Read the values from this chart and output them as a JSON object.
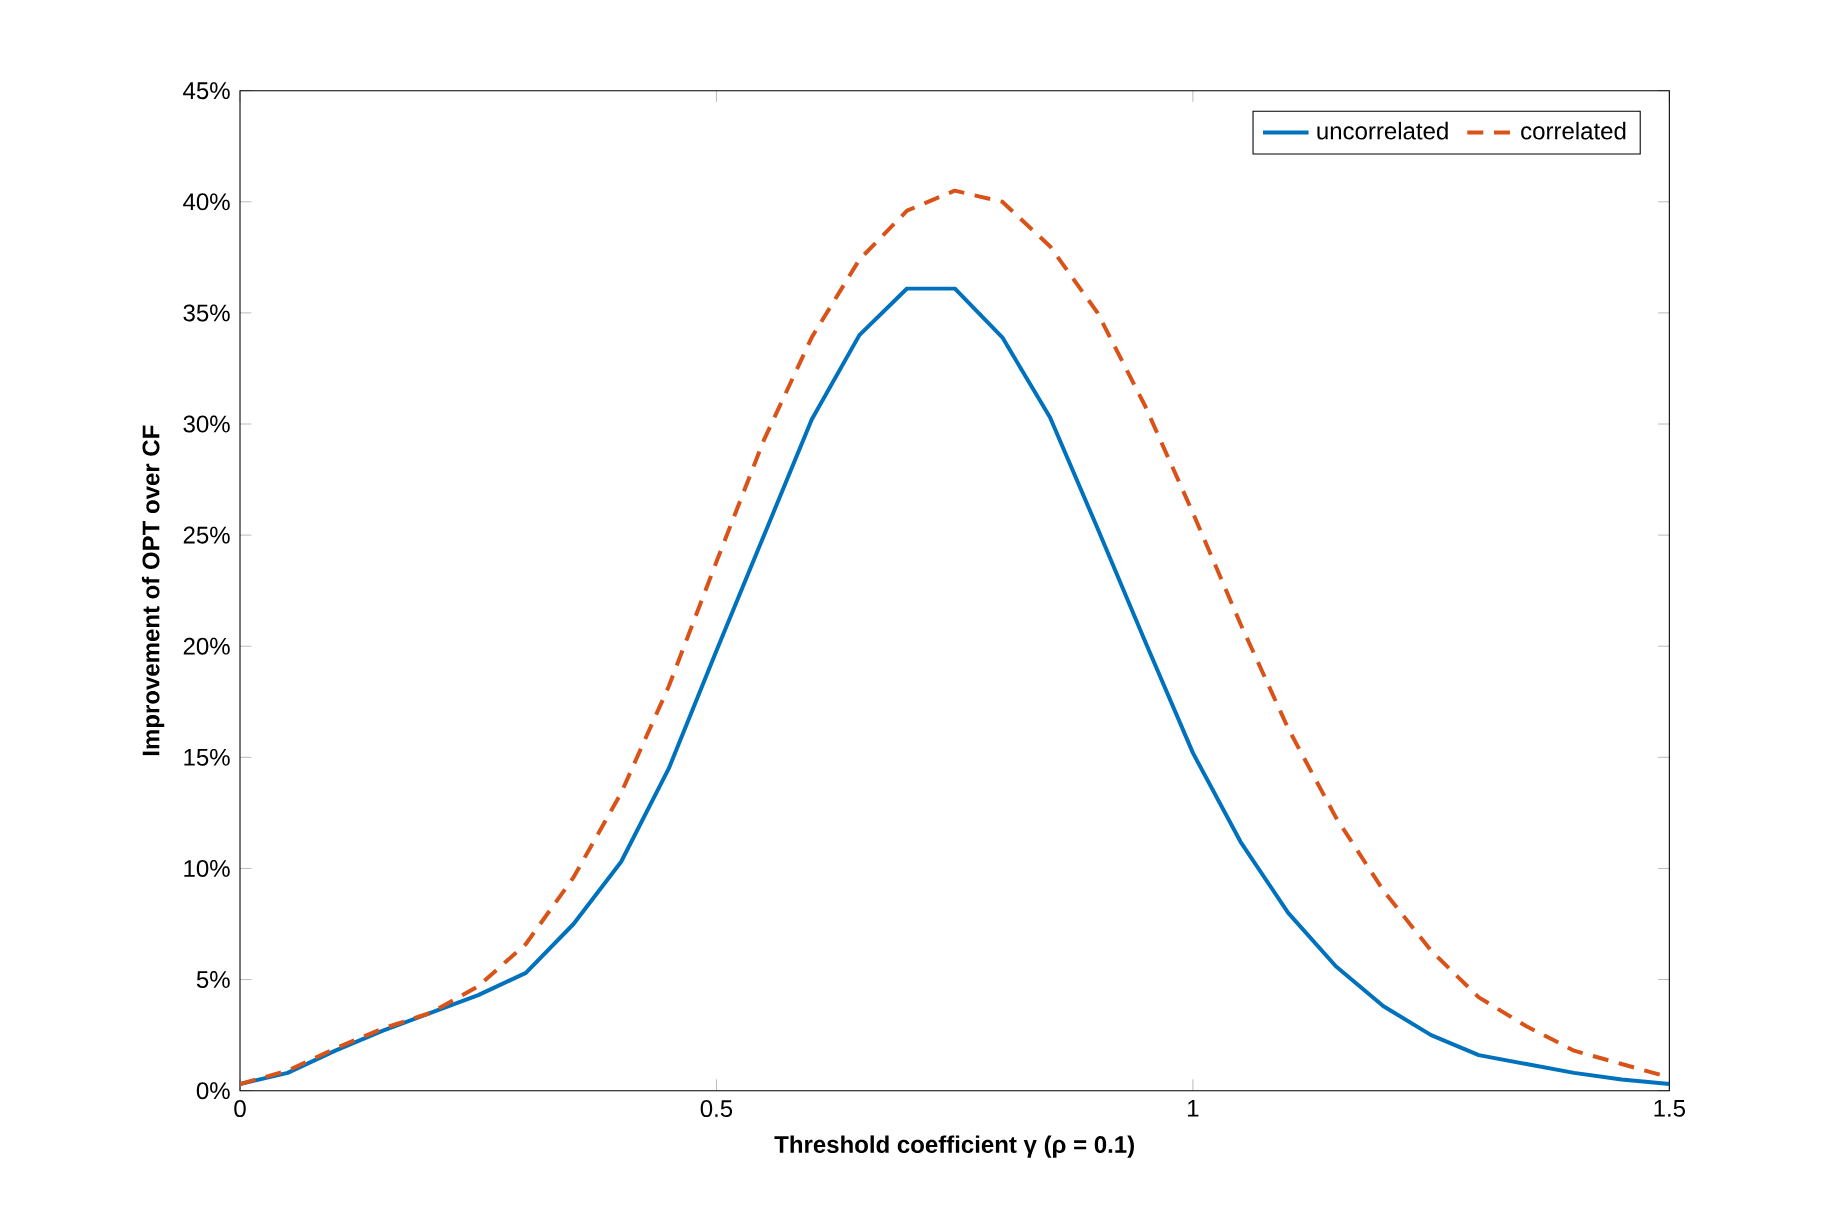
{
  "chart_data": {
    "type": "line",
    "xlabel": "Threshold coefficient γ (ρ = 0.1)",
    "ylabel": "Improvement of OPT over CF",
    "x": [
      0,
      0.05,
      0.1,
      0.15,
      0.2,
      0.25,
      0.3,
      0.35,
      0.4,
      0.45,
      0.5,
      0.55,
      0.6,
      0.65,
      0.7,
      0.75,
      0.8,
      0.85,
      0.9,
      0.95,
      1.0,
      1.05,
      1.1,
      1.15,
      1.2,
      1.25,
      1.3,
      1.35,
      1.4,
      1.45,
      1.5
    ],
    "series": [
      {
        "name": "uncorrelated",
        "color": "#0072bd",
        "line_style": "solid",
        "values": [
          0.3,
          0.8,
          1.8,
          2.7,
          3.5,
          4.3,
          5.3,
          7.5,
          10.3,
          14.5,
          19.8,
          25.0,
          30.2,
          34.0,
          36.1,
          36.1,
          33.9,
          30.3,
          25.3,
          20.2,
          15.2,
          11.2,
          8.0,
          5.6,
          3.8,
          2.5,
          1.6,
          1.2,
          0.8,
          0.5,
          0.3
        ]
      },
      {
        "name": "correlated",
        "color": "#d95319",
        "line_style": "dashed",
        "values": [
          0.3,
          0.9,
          1.9,
          2.8,
          3.5,
          4.7,
          6.6,
          9.6,
          13.4,
          18.2,
          23.8,
          29.3,
          33.9,
          37.4,
          39.6,
          40.5,
          40.0,
          38.0,
          35.0,
          30.8,
          26.0,
          21.0,
          16.3,
          12.3,
          9.0,
          6.3,
          4.2,
          2.9,
          1.8,
          1.2,
          0.6
        ]
      }
    ],
    "xlim": [
      0,
      1.5
    ],
    "xticks": [
      0,
      0.5,
      1,
      1.5
    ],
    "ylim": [
      0,
      45
    ],
    "yticks": [
      {
        "value": 0,
        "label": "0%"
      },
      {
        "value": 5,
        "label": "5%"
      },
      {
        "value": 10,
        "label": "10%"
      },
      {
        "value": 15,
        "label": "15%"
      },
      {
        "value": 20,
        "label": "20%"
      },
      {
        "value": 25,
        "label": "25%"
      },
      {
        "value": 30,
        "label": "30%"
      },
      {
        "value": 35,
        "label": "35%"
      },
      {
        "value": 40,
        "label": "40%"
      },
      {
        "value": 45,
        "label": "45%"
      }
    ],
    "grid": false,
    "legend": "top right",
    "marker": "none"
  }
}
